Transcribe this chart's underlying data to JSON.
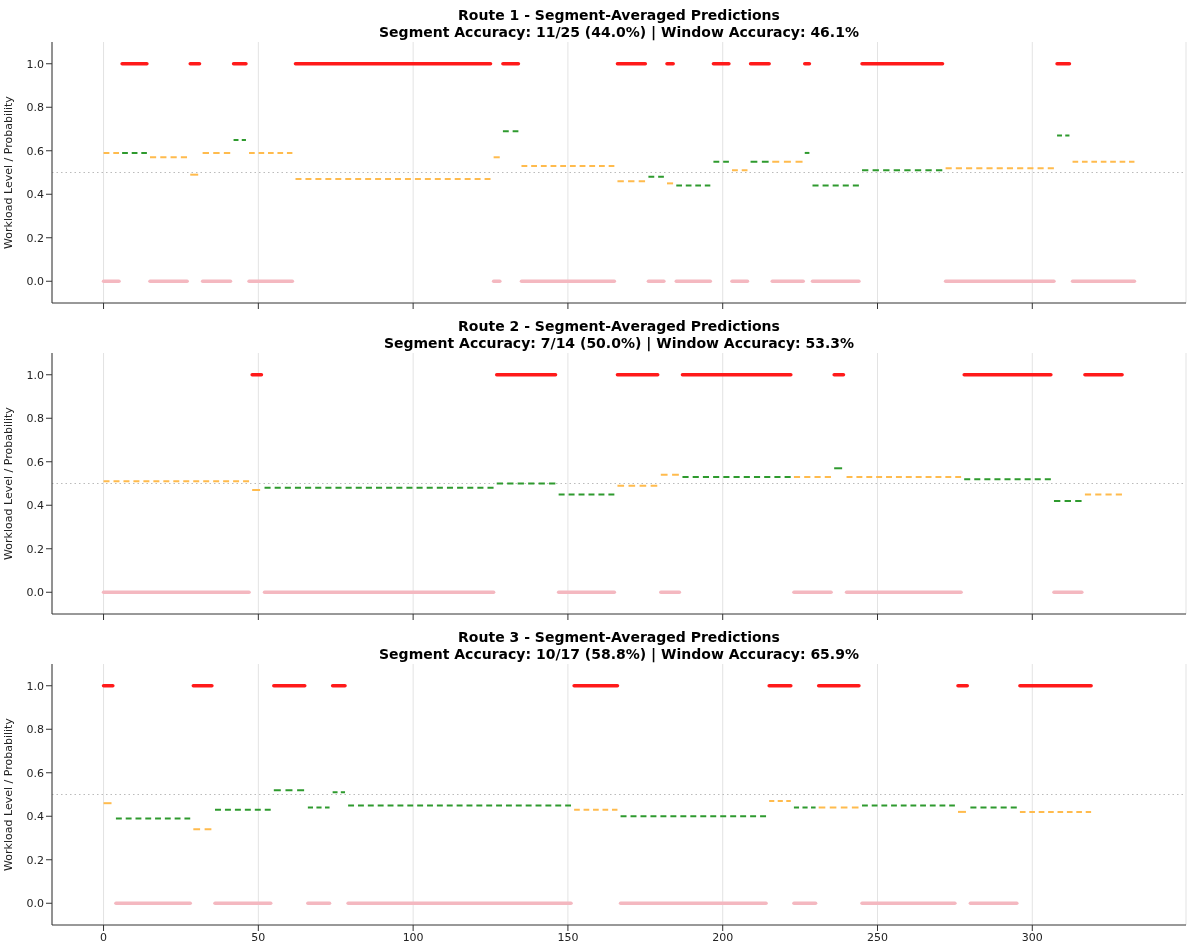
{
  "chart_data": [
    {
      "type": "line",
      "title": "Route 1 - Segment-Averaged Predictions",
      "subtitle": "Segment Accuracy: 11/25 (44.0%) | Window Accuracy: 46.1%",
      "ylabel": "Workload Level / Probability",
      "xlim": [
        -16.65,
        349.65
      ],
      "xticks": [
        0,
        50,
        100,
        150,
        200,
        250,
        300
      ],
      "ylim": [
        -0.1,
        1.1
      ],
      "yticks": [
        {
          "value": 0,
          "label": "0.0"
        },
        {
          "value": 0.2,
          "label": "0.2"
        },
        {
          "value": 0.4,
          "label": "0.4"
        },
        {
          "value": 0.6,
          "label": "0.6"
        },
        {
          "value": 0.8,
          "label": "0.8"
        },
        {
          "value": 1,
          "label": "1.0"
        }
      ],
      "grid": "x",
      "tick_labels": "y",
      "ref_lines": [
        {
          "axis": "y",
          "value": 0.5,
          "color": "#bbbbbb",
          "line_style": "dotted"
        }
      ],
      "series": [
        {
          "color": "#ff1a1a",
          "line_style": "solid",
          "x": [
            6,
            14
          ],
          "values": [
            1,
            1
          ]
        },
        {
          "color": "#ff1a1a",
          "line_style": "solid",
          "x": [
            28,
            31
          ],
          "values": [
            1,
            1
          ]
        },
        {
          "color": "#ff1a1a",
          "line_style": "solid",
          "x": [
            42,
            46
          ],
          "values": [
            1,
            1
          ]
        },
        {
          "color": "#ff1a1a",
          "line_style": "solid",
          "x": [
            62,
            125
          ],
          "values": [
            1,
            1
          ]
        },
        {
          "color": "#ff1a1a",
          "line_style": "solid",
          "x": [
            129,
            134
          ],
          "values": [
            1,
            1
          ]
        },
        {
          "color": "#ff1a1a",
          "line_style": "solid",
          "x": [
            166,
            175
          ],
          "values": [
            1,
            1
          ]
        },
        {
          "color": "#ff1a1a",
          "line_style": "solid",
          "x": [
            182,
            184
          ],
          "values": [
            1,
            1
          ]
        },
        {
          "color": "#ff1a1a",
          "line_style": "solid",
          "x": [
            197,
            202
          ],
          "values": [
            1,
            1
          ]
        },
        {
          "color": "#ff1a1a",
          "line_style": "solid",
          "x": [
            209,
            215
          ],
          "values": [
            1,
            1
          ]
        },
        {
          "color": "#ff1a1a",
          "line_style": "solid",
          "x": [
            226.5,
            228
          ],
          "values": [
            1,
            1
          ]
        },
        {
          "color": "#ff1a1a",
          "line_style": "solid",
          "x": [
            245,
            271
          ],
          "values": [
            1,
            1
          ]
        },
        {
          "color": "#ff1a1a",
          "line_style": "solid",
          "x": [
            308,
            312
          ],
          "values": [
            1,
            1
          ]
        },
        {
          "color": "#f4b8c0",
          "line_style": "solid",
          "x": [
            0,
            5
          ],
          "values": [
            0,
            0
          ]
        },
        {
          "color": "#f4b8c0",
          "line_style": "solid",
          "x": [
            15,
            27
          ],
          "values": [
            0,
            0
          ]
        },
        {
          "color": "#f4b8c0",
          "line_style": "solid",
          "x": [
            32,
            41
          ],
          "values": [
            0,
            0
          ]
        },
        {
          "color": "#f4b8c0",
          "line_style": "solid",
          "x": [
            47,
            61
          ],
          "values": [
            0,
            0
          ]
        },
        {
          "color": "#f4b8c0",
          "line_style": "solid",
          "x": [
            126,
            128
          ],
          "values": [
            0,
            0
          ]
        },
        {
          "color": "#f4b8c0",
          "line_style": "solid",
          "x": [
            135,
            165
          ],
          "values": [
            0,
            0
          ]
        },
        {
          "color": "#f4b8c0",
          "line_style": "solid",
          "x": [
            176,
            181
          ],
          "values": [
            0,
            0
          ]
        },
        {
          "color": "#f4b8c0",
          "line_style": "solid",
          "x": [
            185,
            196
          ],
          "values": [
            0,
            0
          ]
        },
        {
          "color": "#f4b8c0",
          "line_style": "solid",
          "x": [
            203,
            208
          ],
          "values": [
            0,
            0
          ]
        },
        {
          "color": "#f4b8c0",
          "line_style": "solid",
          "x": [
            216,
            226
          ],
          "values": [
            0,
            0
          ]
        },
        {
          "color": "#f4b8c0",
          "line_style": "solid",
          "x": [
            229,
            244
          ],
          "values": [
            0,
            0
          ]
        },
        {
          "color": "#f4b8c0",
          "line_style": "solid",
          "x": [
            272,
            307
          ],
          "values": [
            0,
            0
          ]
        },
        {
          "color": "#f4b8c0",
          "line_style": "solid",
          "x": [
            313,
            333
          ],
          "values": [
            0,
            0
          ]
        },
        {
          "color": "#2e9a2e",
          "line_style": "dashed",
          "x": [
            6,
            14
          ],
          "values": [
            0.59,
            0.59
          ]
        },
        {
          "color": "#2e9a2e",
          "line_style": "dashed",
          "x": [
            42,
            46
          ],
          "values": [
            0.65,
            0.65
          ]
        },
        {
          "color": "#2e9a2e",
          "line_style": "dashed",
          "x": [
            129,
            134
          ],
          "values": [
            0.69,
            0.69
          ]
        },
        {
          "color": "#2e9a2e",
          "line_style": "dashed",
          "x": [
            176,
            181
          ],
          "values": [
            0.48,
            0.48
          ]
        },
        {
          "color": "#2e9a2e",
          "line_style": "dashed",
          "x": [
            185,
            196
          ],
          "values": [
            0.44,
            0.44
          ]
        },
        {
          "color": "#2e9a2e",
          "line_style": "dashed",
          "x": [
            197,
            202
          ],
          "values": [
            0.55,
            0.55
          ]
        },
        {
          "color": "#2e9a2e",
          "line_style": "dashed",
          "x": [
            209,
            215
          ],
          "values": [
            0.55,
            0.55
          ]
        },
        {
          "color": "#2e9a2e",
          "line_style": "dashed",
          "x": [
            226.5,
            228
          ],
          "values": [
            0.59,
            0.59
          ]
        },
        {
          "color": "#2e9a2e",
          "line_style": "dashed",
          "x": [
            229,
            244
          ],
          "values": [
            0.44,
            0.44
          ]
        },
        {
          "color": "#2e9a2e",
          "line_style": "dashed",
          "x": [
            245,
            271
          ],
          "values": [
            0.51,
            0.51
          ]
        },
        {
          "color": "#2e9a2e",
          "line_style": "dashed",
          "x": [
            308,
            312
          ],
          "values": [
            0.67,
            0.67
          ]
        },
        {
          "color": "#ffbb4d",
          "line_style": "dashed",
          "x": [
            0,
            5
          ],
          "values": [
            0.59,
            0.59
          ]
        },
        {
          "color": "#ffbb4d",
          "line_style": "dashed",
          "x": [
            15,
            27
          ],
          "values": [
            0.57,
            0.57
          ]
        },
        {
          "color": "#ffbb4d",
          "line_style": "dashed",
          "x": [
            28,
            31
          ],
          "values": [
            0.49,
            0.49
          ]
        },
        {
          "color": "#ffbb4d",
          "line_style": "dashed",
          "x": [
            32,
            41
          ],
          "values": [
            0.59,
            0.59
          ]
        },
        {
          "color": "#ffbb4d",
          "line_style": "dashed",
          "x": [
            47,
            61
          ],
          "values": [
            0.59,
            0.59
          ]
        },
        {
          "color": "#ffbb4d",
          "line_style": "dashed",
          "x": [
            62,
            125
          ],
          "values": [
            0.47,
            0.47
          ]
        },
        {
          "color": "#ffbb4d",
          "line_style": "dashed",
          "x": [
            126,
            128
          ],
          "values": [
            0.57,
            0.57
          ]
        },
        {
          "color": "#ffbb4d",
          "line_style": "dashed",
          "x": [
            135,
            165
          ],
          "values": [
            0.53,
            0.53
          ]
        },
        {
          "color": "#ffbb4d",
          "line_style": "dashed",
          "x": [
            166,
            175
          ],
          "values": [
            0.46,
            0.46
          ]
        },
        {
          "color": "#ffbb4d",
          "line_style": "dashed",
          "x": [
            182,
            184
          ],
          "values": [
            0.45,
            0.45
          ]
        },
        {
          "color": "#ffbb4d",
          "line_style": "dashed",
          "x": [
            203,
            208
          ],
          "values": [
            0.51,
            0.51
          ]
        },
        {
          "color": "#ffbb4d",
          "line_style": "dashed",
          "x": [
            216,
            226
          ],
          "values": [
            0.55,
            0.55
          ]
        },
        {
          "color": "#ffbb4d",
          "line_style": "dashed",
          "x": [
            272,
            307
          ],
          "values": [
            0.52,
            0.52
          ]
        },
        {
          "color": "#ffbb4d",
          "line_style": "dashed",
          "x": [
            313,
            333
          ],
          "values": [
            0.55,
            0.55
          ]
        }
      ]
    },
    {
      "type": "line",
      "title": "Route 2 - Segment-Averaged Predictions",
      "subtitle": "Segment Accuracy: 7/14 (50.0%) | Window Accuracy: 53.3%",
      "ylabel": "Workload Level / Probability",
      "xlim": [
        -16.65,
        349.65
      ],
      "xticks": [
        0,
        50,
        100,
        150,
        200,
        250,
        300
      ],
      "ylim": [
        -0.1,
        1.1
      ],
      "yticks": [
        {
          "value": 0,
          "label": "0.0"
        },
        {
          "value": 0.2,
          "label": "0.2"
        },
        {
          "value": 0.4,
          "label": "0.4"
        },
        {
          "value": 0.6,
          "label": "0.6"
        },
        {
          "value": 0.8,
          "label": "0.8"
        },
        {
          "value": 1,
          "label": "1.0"
        }
      ],
      "grid": "x",
      "tick_labels": "y",
      "ref_lines": [
        {
          "axis": "y",
          "value": 0.5,
          "color": "#bbbbbb",
          "line_style": "dotted"
        }
      ],
      "series": [
        {
          "color": "#ff1a1a",
          "line_style": "solid",
          "x": [
            48,
            51
          ],
          "values": [
            1,
            1
          ]
        },
        {
          "color": "#ff1a1a",
          "line_style": "solid",
          "x": [
            127,
            146
          ],
          "values": [
            1,
            1
          ]
        },
        {
          "color": "#ff1a1a",
          "line_style": "solid",
          "x": [
            166,
            179
          ],
          "values": [
            1,
            1
          ]
        },
        {
          "color": "#ff1a1a",
          "line_style": "solid",
          "x": [
            187,
            222
          ],
          "values": [
            1,
            1
          ]
        },
        {
          "color": "#ff1a1a",
          "line_style": "solid",
          "x": [
            236,
            239
          ],
          "values": [
            1,
            1
          ]
        },
        {
          "color": "#ff1a1a",
          "line_style": "solid",
          "x": [
            278,
            306
          ],
          "values": [
            1,
            1
          ]
        },
        {
          "color": "#ff1a1a",
          "line_style": "solid",
          "x": [
            317,
            329
          ],
          "values": [
            1,
            1
          ]
        },
        {
          "color": "#f4b8c0",
          "line_style": "solid",
          "x": [
            0,
            47
          ],
          "values": [
            0,
            0
          ]
        },
        {
          "color": "#f4b8c0",
          "line_style": "solid",
          "x": [
            52,
            126
          ],
          "values": [
            0,
            0
          ]
        },
        {
          "color": "#f4b8c0",
          "line_style": "solid",
          "x": [
            147,
            165
          ],
          "values": [
            0,
            0
          ]
        },
        {
          "color": "#f4b8c0",
          "line_style": "solid",
          "x": [
            180,
            186
          ],
          "values": [
            0,
            0
          ]
        },
        {
          "color": "#f4b8c0",
          "line_style": "solid",
          "x": [
            223,
            235
          ],
          "values": [
            0,
            0
          ]
        },
        {
          "color": "#f4b8c0",
          "line_style": "solid",
          "x": [
            240,
            277
          ],
          "values": [
            0,
            0
          ]
        },
        {
          "color": "#f4b8c0",
          "line_style": "solid",
          "x": [
            307,
            316
          ],
          "values": [
            0,
            0
          ]
        },
        {
          "color": "#2e9a2e",
          "line_style": "dashed",
          "x": [
            52,
            126
          ],
          "values": [
            0.48,
            0.48
          ]
        },
        {
          "color": "#2e9a2e",
          "line_style": "dashed",
          "x": [
            127,
            146
          ],
          "values": [
            0.5,
            0.5
          ]
        },
        {
          "color": "#2e9a2e",
          "line_style": "dashed",
          "x": [
            147,
            165
          ],
          "values": [
            0.45,
            0.45
          ]
        },
        {
          "color": "#2e9a2e",
          "line_style": "dashed",
          "x": [
            187,
            222
          ],
          "values": [
            0.53,
            0.53
          ]
        },
        {
          "color": "#2e9a2e",
          "line_style": "dashed",
          "x": [
            236,
            239
          ],
          "values": [
            0.57,
            0.57
          ]
        },
        {
          "color": "#2e9a2e",
          "line_style": "dashed",
          "x": [
            278,
            306
          ],
          "values": [
            0.52,
            0.52
          ]
        },
        {
          "color": "#2e9a2e",
          "line_style": "dashed",
          "x": [
            307,
            316
          ],
          "values": [
            0.42,
            0.42
          ]
        },
        {
          "color": "#ffbb4d",
          "line_style": "dashed",
          "x": [
            0,
            47
          ],
          "values": [
            0.51,
            0.51
          ]
        },
        {
          "color": "#ffbb4d",
          "line_style": "dashed",
          "x": [
            48,
            51
          ],
          "values": [
            0.47,
            0.47
          ]
        },
        {
          "color": "#ffbb4d",
          "line_style": "dashed",
          "x": [
            166,
            179
          ],
          "values": [
            0.49,
            0.49
          ]
        },
        {
          "color": "#ffbb4d",
          "line_style": "dashed",
          "x": [
            180,
            186
          ],
          "values": [
            0.54,
            0.54
          ]
        },
        {
          "color": "#ffbb4d",
          "line_style": "dashed",
          "x": [
            223,
            235
          ],
          "values": [
            0.53,
            0.53
          ]
        },
        {
          "color": "#ffbb4d",
          "line_style": "dashed",
          "x": [
            240,
            277
          ],
          "values": [
            0.53,
            0.53
          ]
        },
        {
          "color": "#ffbb4d",
          "line_style": "dashed",
          "x": [
            317,
            329
          ],
          "values": [
            0.45,
            0.45
          ]
        }
      ]
    },
    {
      "type": "line",
      "title": "Route 3 - Segment-Averaged Predictions",
      "subtitle": "Segment Accuracy: 10/17 (58.8%) | Window Accuracy: 65.9%",
      "ylabel": "Workload Level / Probability",
      "xlim": [
        -16.65,
        349.65
      ],
      "xticks": [
        0,
        50,
        100,
        150,
        200,
        250,
        300
      ],
      "ylim": [
        -0.1,
        1.1
      ],
      "yticks": [
        {
          "value": 0,
          "label": "0.0"
        },
        {
          "value": 0.2,
          "label": "0.2"
        },
        {
          "value": 0.4,
          "label": "0.4"
        },
        {
          "value": 0.6,
          "label": "0.6"
        },
        {
          "value": 0.8,
          "label": "0.8"
        },
        {
          "value": 1,
          "label": "1.0"
        }
      ],
      "grid": "x",
      "ref_lines": [
        {
          "axis": "y",
          "value": 0.5,
          "color": "#bbbbbb",
          "line_style": "dotted"
        }
      ],
      "series": [
        {
          "color": "#ff1a1a",
          "line_style": "solid",
          "x": [
            0,
            3
          ],
          "values": [
            1,
            1
          ]
        },
        {
          "color": "#ff1a1a",
          "line_style": "solid",
          "x": [
            29,
            35
          ],
          "values": [
            1,
            1
          ]
        },
        {
          "color": "#ff1a1a",
          "line_style": "solid",
          "x": [
            55,
            65
          ],
          "values": [
            1,
            1
          ]
        },
        {
          "color": "#ff1a1a",
          "line_style": "solid",
          "x": [
            74,
            78
          ],
          "values": [
            1,
            1
          ]
        },
        {
          "color": "#ff1a1a",
          "line_style": "solid",
          "x": [
            152,
            166
          ],
          "values": [
            1,
            1
          ]
        },
        {
          "color": "#ff1a1a",
          "line_style": "solid",
          "x": [
            215,
            222
          ],
          "values": [
            1,
            1
          ]
        },
        {
          "color": "#ff1a1a",
          "line_style": "solid",
          "x": [
            231,
            244
          ],
          "values": [
            1,
            1
          ]
        },
        {
          "color": "#ff1a1a",
          "line_style": "solid",
          "x": [
            276,
            279
          ],
          "values": [
            1,
            1
          ]
        },
        {
          "color": "#ff1a1a",
          "line_style": "solid",
          "x": [
            296,
            319
          ],
          "values": [
            1,
            1
          ]
        },
        {
          "color": "#f4b8c0",
          "line_style": "solid",
          "x": [
            4,
            28
          ],
          "values": [
            0,
            0
          ]
        },
        {
          "color": "#f4b8c0",
          "line_style": "solid",
          "x": [
            36,
            54
          ],
          "values": [
            0,
            0
          ]
        },
        {
          "color": "#f4b8c0",
          "line_style": "solid",
          "x": [
            66,
            73
          ],
          "values": [
            0,
            0
          ]
        },
        {
          "color": "#f4b8c0",
          "line_style": "solid",
          "x": [
            79,
            151
          ],
          "values": [
            0,
            0
          ]
        },
        {
          "color": "#f4b8c0",
          "line_style": "solid",
          "x": [
            167,
            214
          ],
          "values": [
            0,
            0
          ]
        },
        {
          "color": "#f4b8c0",
          "line_style": "solid",
          "x": [
            223,
            230
          ],
          "values": [
            0,
            0
          ]
        },
        {
          "color": "#f4b8c0",
          "line_style": "solid",
          "x": [
            245,
            275
          ],
          "values": [
            0,
            0
          ]
        },
        {
          "color": "#f4b8c0",
          "line_style": "solid",
          "x": [
            280,
            295
          ],
          "values": [
            0,
            0
          ]
        },
        {
          "color": "#2e9a2e",
          "line_style": "dashed",
          "x": [
            4,
            28
          ],
          "values": [
            0.39,
            0.39
          ]
        },
        {
          "color": "#2e9a2e",
          "line_style": "dashed",
          "x": [
            36,
            54
          ],
          "values": [
            0.43,
            0.43
          ]
        },
        {
          "color": "#2e9a2e",
          "line_style": "dashed",
          "x": [
            55,
            65
          ],
          "values": [
            0.52,
            0.52
          ]
        },
        {
          "color": "#2e9a2e",
          "line_style": "dashed",
          "x": [
            66,
            73
          ],
          "values": [
            0.44,
            0.44
          ]
        },
        {
          "color": "#2e9a2e",
          "line_style": "dashed",
          "x": [
            74,
            78
          ],
          "values": [
            0.51,
            0.51
          ]
        },
        {
          "color": "#2e9a2e",
          "line_style": "dashed",
          "x": [
            79,
            151
          ],
          "values": [
            0.45,
            0.45
          ]
        },
        {
          "color": "#2e9a2e",
          "line_style": "dashed",
          "x": [
            167,
            214
          ],
          "values": [
            0.4,
            0.4
          ]
        },
        {
          "color": "#2e9a2e",
          "line_style": "dashed",
          "x": [
            223,
            230
          ],
          "values": [
            0.44,
            0.44
          ]
        },
        {
          "color": "#2e9a2e",
          "line_style": "dashed",
          "x": [
            245,
            275
          ],
          "values": [
            0.45,
            0.45
          ]
        },
        {
          "color": "#2e9a2e",
          "line_style": "dashed",
          "x": [
            280,
            295
          ],
          "values": [
            0.44,
            0.44
          ]
        },
        {
          "color": "#ffbb4d",
          "line_style": "dashed",
          "x": [
            0,
            3
          ],
          "values": [
            0.46,
            0.46
          ]
        },
        {
          "color": "#ffbb4d",
          "line_style": "dashed",
          "x": [
            29,
            35
          ],
          "values": [
            0.34,
            0.34
          ]
        },
        {
          "color": "#ffbb4d",
          "line_style": "dashed",
          "x": [
            152,
            166
          ],
          "values": [
            0.43,
            0.43
          ]
        },
        {
          "color": "#ffbb4d",
          "line_style": "dashed",
          "x": [
            215,
            222
          ],
          "values": [
            0.47,
            0.47
          ]
        },
        {
          "color": "#ffbb4d",
          "line_style": "dashed",
          "x": [
            231,
            244
          ],
          "values": [
            0.44,
            0.44
          ]
        },
        {
          "color": "#ffbb4d",
          "line_style": "dashed",
          "x": [
            276,
            279
          ],
          "values": [
            0.42,
            0.42
          ]
        },
        {
          "color": "#ffbb4d",
          "line_style": "dashed",
          "x": [
            296,
            319
          ],
          "values": [
            0.42,
            0.42
          ]
        }
      ]
    }
  ]
}
